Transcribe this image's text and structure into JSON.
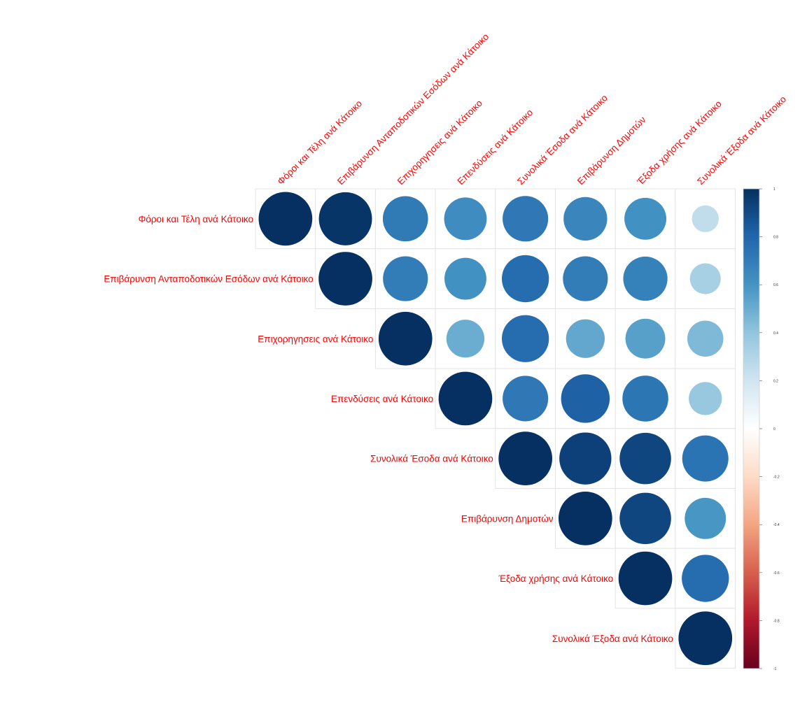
{
  "chart_data": {
    "type": "heatmap",
    "variables": [
      "Φόροι και Τέλη ανά Κάτοικο",
      "Επιβάρυνση Ανταποδοτικών Εσόδων ανά Κάτοικο",
      "Επιχορηγησεις ανά Κάτοικο",
      "Επενδύσεις ανά Κάτοικο",
      "Συνολικά Έσοδα ανά Κάτοικο",
      "Επιβάρυνση Δημοτών",
      "Έξοδα χρήσης ανά Κάτοικο",
      "Συνολικά Έξοδα ανά Κάτοικο"
    ],
    "matrix_upper": [
      [
        1.0,
        0.98,
        0.71,
        0.63,
        0.72,
        0.66,
        0.61,
        0.25
      ],
      [
        null,
        1.0,
        0.7,
        0.61,
        0.77,
        0.7,
        0.68,
        0.33
      ],
      [
        null,
        null,
        1.0,
        0.5,
        0.77,
        0.52,
        0.55,
        0.45
      ],
      [
        null,
        null,
        null,
        1.0,
        0.72,
        0.82,
        0.73,
        0.38
      ],
      [
        null,
        null,
        null,
        null,
        1.0,
        0.94,
        0.92,
        0.74
      ],
      [
        null,
        null,
        null,
        null,
        null,
        1.0,
        0.92,
        0.59
      ],
      [
        null,
        null,
        null,
        null,
        null,
        null,
        1.0,
        0.77
      ],
      [
        null,
        null,
        null,
        null,
        null,
        null,
        null,
        1.0
      ]
    ],
    "colorbar_ticks": [
      "1",
      "0.8",
      "0.6",
      "0.4",
      "0.2",
      "0",
      "-0.2",
      "-0.4",
      "-0.6",
      "-0.8",
      "-1"
    ],
    "colorbar_range": [
      -1,
      1
    ],
    "label_color": "#ff0000",
    "palette": [
      "#67001f",
      "#b2182b",
      "#d6604d",
      "#f4a582",
      "#fddbc7",
      "#ffffff",
      "#d1e5f0",
      "#92c5de",
      "#4393c3",
      "#2166ac",
      "#053061"
    ]
  }
}
